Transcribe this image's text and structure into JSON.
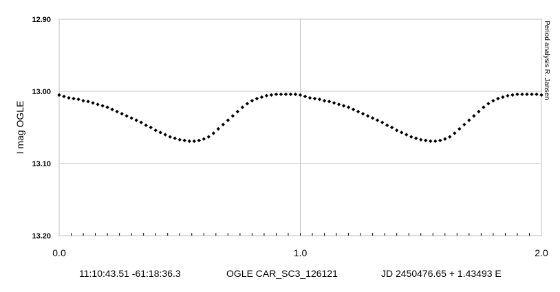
{
  "chart_data": {
    "type": "scatter",
    "ylabel": "I mag OGLE",
    "side_note": "Period analysis  R. Jansen",
    "x_ticks": [
      "0.0",
      "1.0",
      "2.0"
    ],
    "y_ticks": [
      "12.90",
      "13.00",
      "13.10",
      "13.20"
    ],
    "xlim": [
      0,
      2
    ],
    "ylim": [
      12.9,
      13.2
    ],
    "y_inverted": true,
    "grid": true,
    "marker": "diamond",
    "color": "#000000",
    "series": [
      {
        "x": [
          0.0,
          0.02,
          0.04,
          0.06,
          0.08,
          0.1,
          0.12,
          0.14,
          0.16,
          0.18,
          0.2,
          0.22,
          0.24,
          0.26,
          0.28,
          0.3,
          0.32,
          0.34,
          0.36,
          0.38,
          0.4,
          0.42,
          0.44,
          0.46,
          0.48,
          0.5,
          0.52,
          0.54,
          0.56,
          0.58,
          0.6,
          0.62,
          0.64,
          0.66,
          0.68,
          0.7,
          0.72,
          0.74,
          0.76,
          0.78,
          0.8,
          0.82,
          0.84,
          0.86,
          0.88,
          0.9,
          0.92,
          0.94,
          0.96,
          0.98,
          1.0,
          1.02,
          1.04,
          1.06,
          1.08,
          1.1,
          1.12,
          1.14,
          1.16,
          1.18,
          1.2,
          1.22,
          1.24,
          1.26,
          1.28,
          1.3,
          1.32,
          1.34,
          1.36,
          1.38,
          1.4,
          1.42,
          1.44,
          1.46,
          1.48,
          1.5,
          1.52,
          1.54,
          1.56,
          1.58,
          1.6,
          1.62,
          1.64,
          1.66,
          1.68,
          1.7,
          1.72,
          1.74,
          1.76,
          1.78,
          1.8,
          1.82,
          1.84,
          1.86,
          1.88,
          1.9,
          1.92,
          1.94,
          1.96,
          1.98,
          2.0
        ],
        "y": [
          13.005,
          13.007,
          13.009,
          13.01,
          13.011,
          13.013,
          13.014,
          13.016,
          13.018,
          13.02,
          13.022,
          13.025,
          13.028,
          13.031,
          13.034,
          13.037,
          13.04,
          13.043,
          13.047,
          13.05,
          13.054,
          13.057,
          13.06,
          13.063,
          13.065,
          13.067,
          13.068,
          13.069,
          13.069,
          13.068,
          13.066,
          13.063,
          13.058,
          13.052,
          13.046,
          13.04,
          13.034,
          13.028,
          13.022,
          13.017,
          13.013,
          13.01,
          13.008,
          13.006,
          13.005,
          13.004,
          13.004,
          13.004,
          13.004,
          13.004,
          13.005,
          13.007,
          13.009,
          13.01,
          13.011,
          13.013,
          13.014,
          13.016,
          13.018,
          13.02,
          13.022,
          13.025,
          13.028,
          13.031,
          13.034,
          13.037,
          13.04,
          13.043,
          13.047,
          13.05,
          13.054,
          13.057,
          13.06,
          13.063,
          13.065,
          13.067,
          13.068,
          13.069,
          13.069,
          13.068,
          13.066,
          13.063,
          13.058,
          13.052,
          13.046,
          13.04,
          13.034,
          13.028,
          13.022,
          13.017,
          13.013,
          13.01,
          13.008,
          13.006,
          13.005,
          13.004,
          13.004,
          13.004,
          13.004,
          13.004,
          13.005
        ]
      }
    ]
  },
  "footer": {
    "coordinates": "11:10:43.51 -61:18:36.3",
    "star_id": "OGLE CAR_SC3_126121",
    "ephemeris": "JD 2450476.65 + 1.43493 E"
  }
}
